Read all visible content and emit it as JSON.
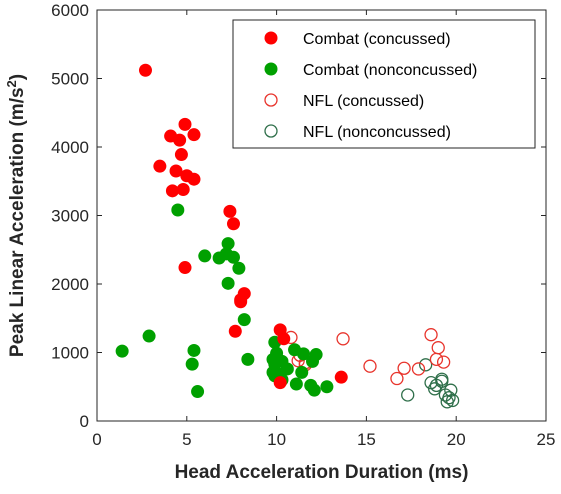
{
  "chart_data": {
    "type": "scatter",
    "xlabel": "Head Acceleration Duration (ms)",
    "ylabel_main": "Peak Linear Acceleration (m/s",
    "ylabel_sup": "2",
    "ylabel_end": ")",
    "xlim": [
      0,
      25
    ],
    "ylim": [
      0,
      6000
    ],
    "xticks": [
      0,
      5,
      10,
      15,
      20,
      25
    ],
    "yticks": [
      0,
      1000,
      2000,
      3000,
      4000,
      5000,
      6000
    ],
    "grid": false,
    "legend_position": "top-right",
    "series": [
      {
        "name": "Combat (concussed)",
        "color": "#ff0000",
        "marker": "filled-circle",
        "points": [
          [
            2.7,
            5120
          ],
          [
            4.9,
            4330
          ],
          [
            4.6,
            4100
          ],
          [
            5.4,
            4180
          ],
          [
            4.1,
            4160
          ],
          [
            3.5,
            3720
          ],
          [
            4.7,
            3890
          ],
          [
            4.4,
            3650
          ],
          [
            4.2,
            3360
          ],
          [
            4.8,
            3380
          ],
          [
            5.0,
            3580
          ],
          [
            5.4,
            3530
          ],
          [
            7.4,
            3060
          ],
          [
            7.6,
            2880
          ],
          [
            4.9,
            2240
          ],
          [
            8.2,
            1860
          ],
          [
            8.0,
            1770
          ],
          [
            8.0,
            1740
          ],
          [
            7.7,
            1310
          ],
          [
            10.2,
            1330
          ],
          [
            10.4,
            1200
          ],
          [
            10.2,
            560
          ],
          [
            13.6,
            640
          ]
        ]
      },
      {
        "name": "Combat (nonconcussed)",
        "color": "#00a000",
        "marker": "filled-circle",
        "points": [
          [
            4.5,
            3080
          ],
          [
            7.3,
            2590
          ],
          [
            7.2,
            2440
          ],
          [
            7.6,
            2390
          ],
          [
            6.0,
            2410
          ],
          [
            6.8,
            2380
          ],
          [
            7.9,
            2230
          ],
          [
            7.3,
            2010
          ],
          [
            8.2,
            1480
          ],
          [
            2.9,
            1240
          ],
          [
            1.4,
            1020
          ],
          [
            5.4,
            1030
          ],
          [
            5.3,
            830
          ],
          [
            8.4,
            900
          ],
          [
            5.6,
            430
          ],
          [
            9.9,
            1150
          ],
          [
            10.0,
            990
          ],
          [
            9.8,
            900
          ],
          [
            10.3,
            870
          ],
          [
            9.9,
            830
          ],
          [
            10.6,
            760
          ],
          [
            9.8,
            710
          ],
          [
            10.0,
            700
          ],
          [
            10.2,
            680
          ],
          [
            9.9,
            660
          ],
          [
            10.3,
            600
          ],
          [
            11.0,
            1040
          ],
          [
            11.5,
            980
          ],
          [
            12.2,
            970
          ],
          [
            12.0,
            870
          ],
          [
            11.4,
            710
          ],
          [
            11.1,
            540
          ],
          [
            11.9,
            520
          ],
          [
            12.1,
            450
          ],
          [
            12.8,
            500
          ]
        ]
      },
      {
        "name": "NFL (concussed)",
        "color": "#e8342c",
        "marker": "open-circle",
        "points": [
          [
            10.8,
            1220
          ],
          [
            11.3,
            960
          ],
          [
            11.2,
            880
          ],
          [
            11.6,
            850
          ],
          [
            11.6,
            820
          ],
          [
            13.7,
            1200
          ],
          [
            15.2,
            800
          ],
          [
            16.7,
            620
          ],
          [
            17.1,
            770
          ],
          [
            17.9,
            760
          ],
          [
            18.6,
            1260
          ],
          [
            19.0,
            1070
          ],
          [
            18.9,
            900
          ],
          [
            19.3,
            860
          ]
        ]
      },
      {
        "name": "NFL (nonconcussed)",
        "color": "#2f6f4a",
        "marker": "open-circle",
        "points": [
          [
            18.3,
            820
          ],
          [
            17.3,
            380
          ],
          [
            18.6,
            560
          ],
          [
            18.9,
            520
          ],
          [
            19.2,
            610
          ],
          [
            18.8,
            470
          ],
          [
            19.4,
            380
          ],
          [
            19.5,
            280
          ],
          [
            19.6,
            340
          ],
          [
            19.7,
            450
          ],
          [
            19.8,
            300
          ],
          [
            19.2,
            580
          ]
        ]
      }
    ]
  }
}
